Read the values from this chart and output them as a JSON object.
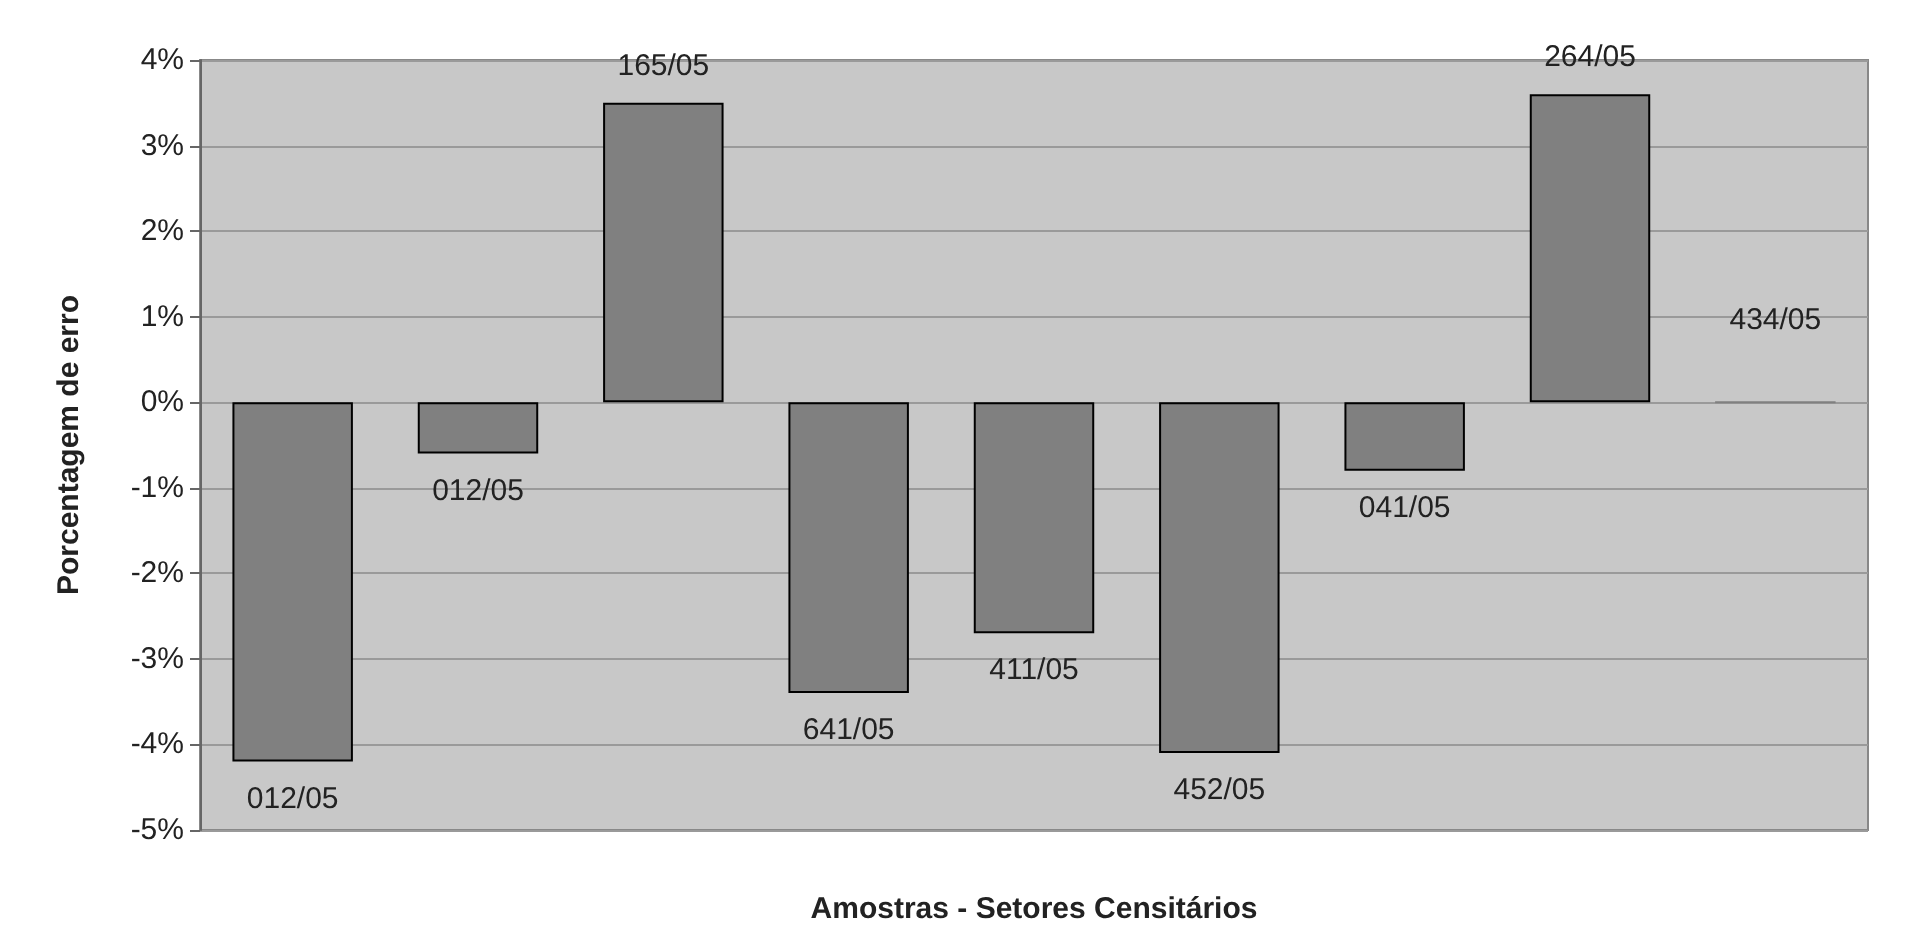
{
  "chart_data": {
    "type": "bar",
    "xlabel": "Amostras - Setores Censitários",
    "ylabel": "Porcentagem de erro",
    "categories": [
      "012/05",
      "012/05",
      "165/05",
      "641/05",
      "411/05",
      "452/05",
      "041/05",
      "264/05",
      "434/05"
    ],
    "values": [
      -4.2,
      -0.6,
      3.5,
      -3.4,
      -2.7,
      -4.1,
      -0.8,
      3.6,
      0
    ],
    "color": "#808080",
    "ylim": [
      -5,
      4
    ],
    "yticks": [
      {
        "value": -5,
        "label": "-5%"
      },
      {
        "value": -4,
        "label": "-4%"
      },
      {
        "value": -3,
        "label": "-3%"
      },
      {
        "value": -2,
        "label": "-2%"
      },
      {
        "value": -1,
        "label": "-1%"
      },
      {
        "value": 0,
        "label": "0%"
      },
      {
        "value": 1,
        "label": "1%"
      },
      {
        "value": 2,
        "label": "2%"
      },
      {
        "value": 3,
        "label": "3%"
      },
      {
        "value": 4,
        "label": "4%"
      }
    ],
    "grid": "y",
    "tick_labels": "y"
  }
}
